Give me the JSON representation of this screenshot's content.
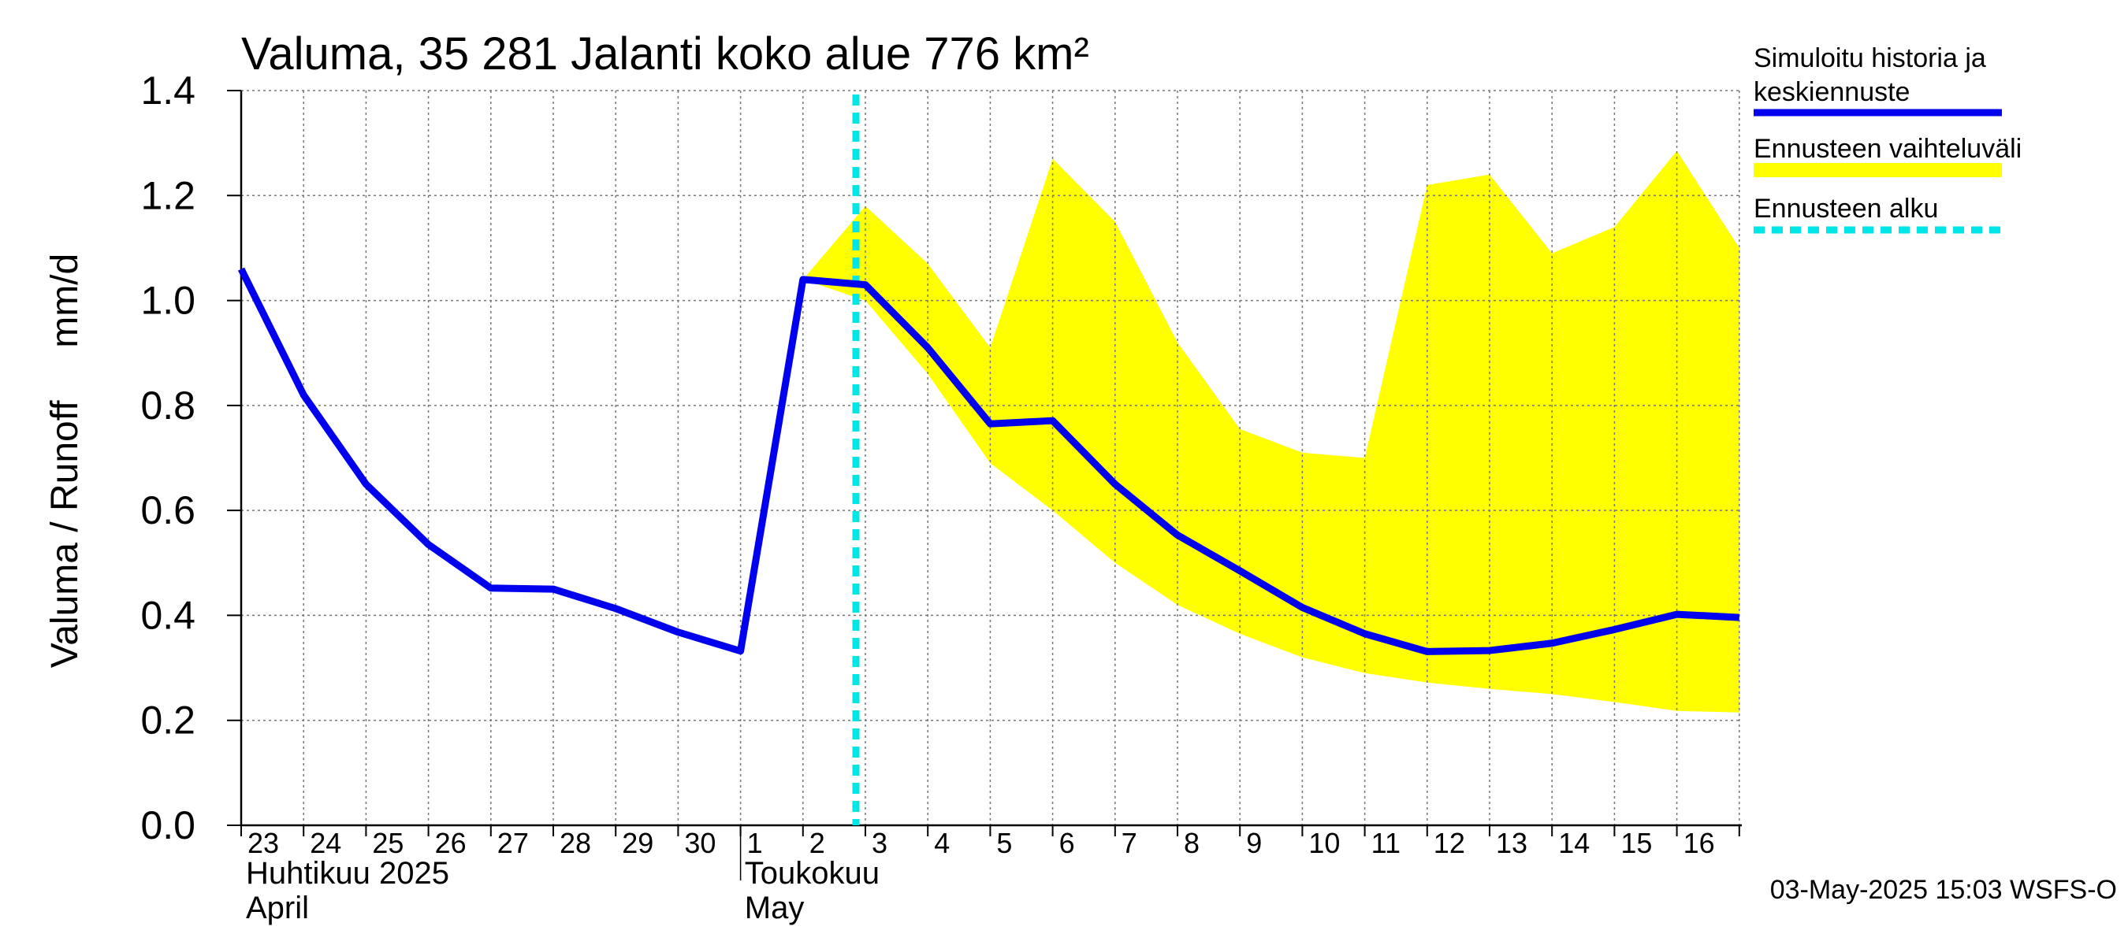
{
  "chart_data": {
    "type": "line",
    "title": "Valuma, 35 281 Jalanti koko alue 776 km²",
    "ylabel": "Valuma / Runoff     mm/d",
    "ylim": [
      0,
      1.4
    ],
    "yticks": [
      "0.0",
      "0.2",
      "0.4",
      "0.6",
      "0.8",
      "1.0",
      "1.2",
      "1.4"
    ],
    "grid": true,
    "legend_position": "right",
    "x_tick_labels": [
      "23",
      "24",
      "25",
      "26",
      "27",
      "28",
      "29",
      "30",
      "1",
      "2",
      "3",
      "4",
      "5",
      "6",
      "7",
      "8",
      "9",
      "10",
      "11",
      "12",
      "13",
      "14",
      "15",
      "16"
    ],
    "month_labels": [
      {
        "line1": "Huhtikuu  2025",
        "line2": "April"
      },
      {
        "line1": "Toukokuu",
        "line2": "May"
      }
    ],
    "forecast_start_index": 10,
    "series": [
      {
        "name": "Simuloitu historia ja keskiennuste",
        "color": "#0000ee",
        "values": [
          1.06,
          0.82,
          0.65,
          0.535,
          0.452,
          0.45,
          0.413,
          0.368,
          0.332,
          1.04,
          1.03,
          0.91,
          0.765,
          0.771,
          0.65,
          0.553,
          0.485,
          0.415,
          0.365,
          0.331,
          0.333,
          0.347,
          0.373,
          0.402,
          0.396
        ]
      },
      {
        "name": "Ennusteen vaihteluväli",
        "color": "#ffff00",
        "start_index": 9,
        "upper": [
          1.04,
          1.18,
          1.07,
          0.91,
          1.27,
          1.15,
          0.92,
          0.755,
          0.71,
          0.7,
          1.22,
          1.24,
          1.09,
          1.14,
          1.285,
          1.1
        ],
        "lower": [
          1.04,
          1.0,
          0.86,
          0.69,
          0.6,
          0.5,
          0.42,
          0.365,
          0.32,
          0.29,
          0.272,
          0.26,
          0.25,
          0.235,
          0.218,
          0.215
        ]
      },
      {
        "name": "Ennusteen alku",
        "color": "#00e5e5"
      }
    ]
  },
  "footer": {
    "timestamp": "03-May-2025 15:03 WSFS-O"
  }
}
